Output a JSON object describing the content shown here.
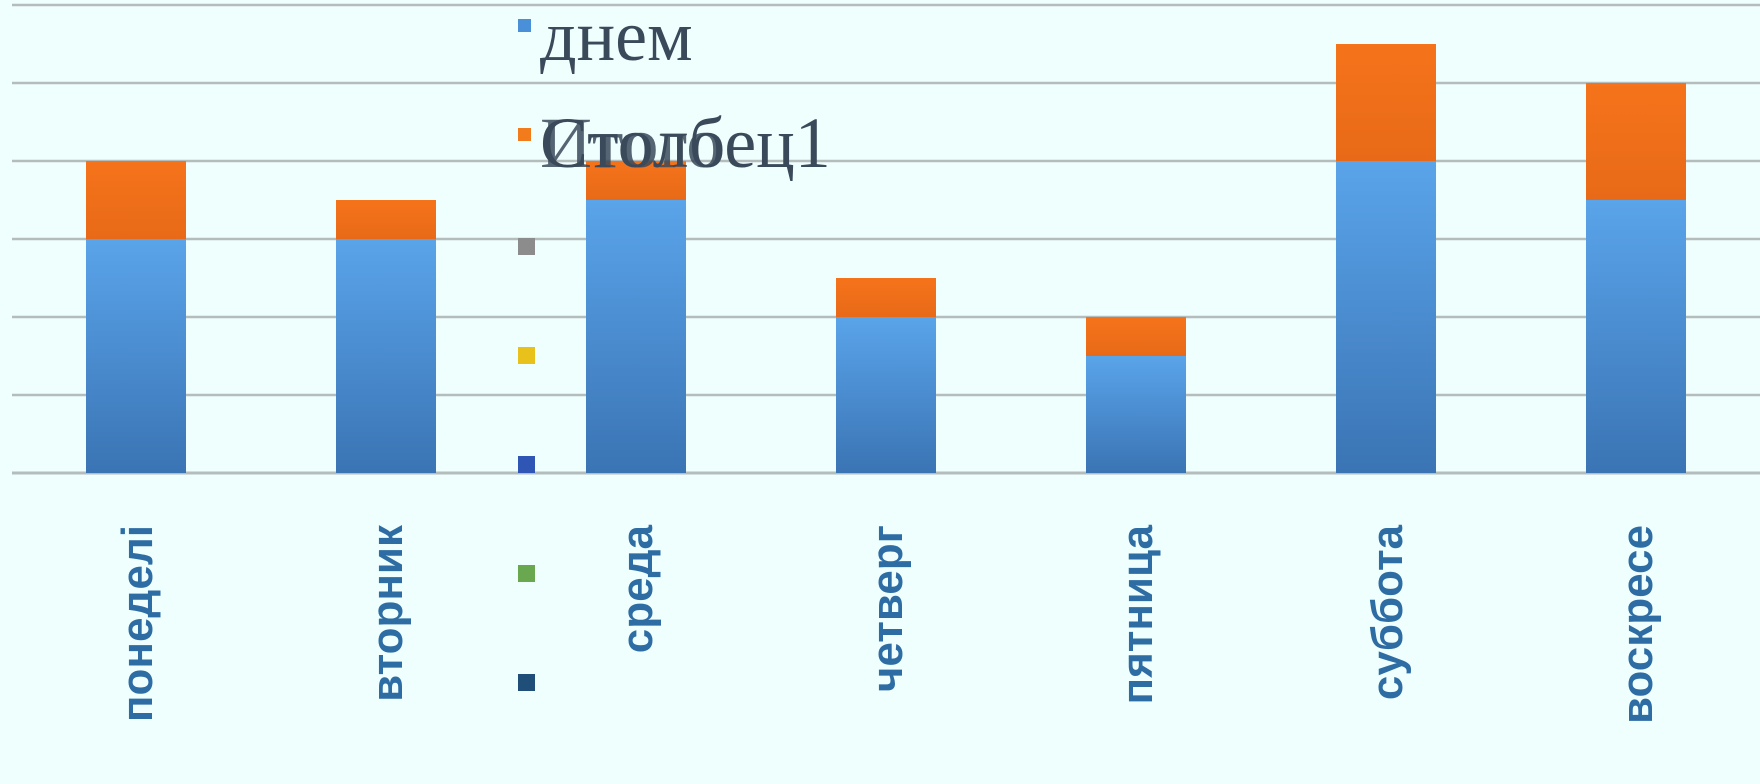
{
  "chart_data": {
    "type": "bar",
    "stacked": true,
    "categories": [
      "понеделі",
      "вторник",
      "среда",
      "четверг",
      "пятница",
      "суббота",
      "воскресе"
    ],
    "series": [
      {
        "name": "днем",
        "color": "#4a90d9",
        "values": [
          3,
          3,
          3.5,
          2,
          1.5,
          4,
          3.5
        ]
      },
      {
        "name": "Столбец1",
        "color": "#f27b1c",
        "values": [
          1,
          0.5,
          0.5,
          0.5,
          0.5,
          1.5,
          1.5
        ]
      }
    ],
    "overlapping_legend_label": "Итого",
    "extra_legend_swatches": [
      "#8c8c8c",
      "#e8c21a",
      "#2f55b5",
      "#6aa84f",
      "#1f4e79"
    ],
    "ylim": [
      0,
      6
    ],
    "gridlines": true,
    "legend_position": "center-overlay",
    "colors": {
      "background": "#effffe",
      "gridline": "#b4bcbc",
      "category_label": "#2e6da4",
      "legend_text": "#3b4a5a"
    }
  }
}
